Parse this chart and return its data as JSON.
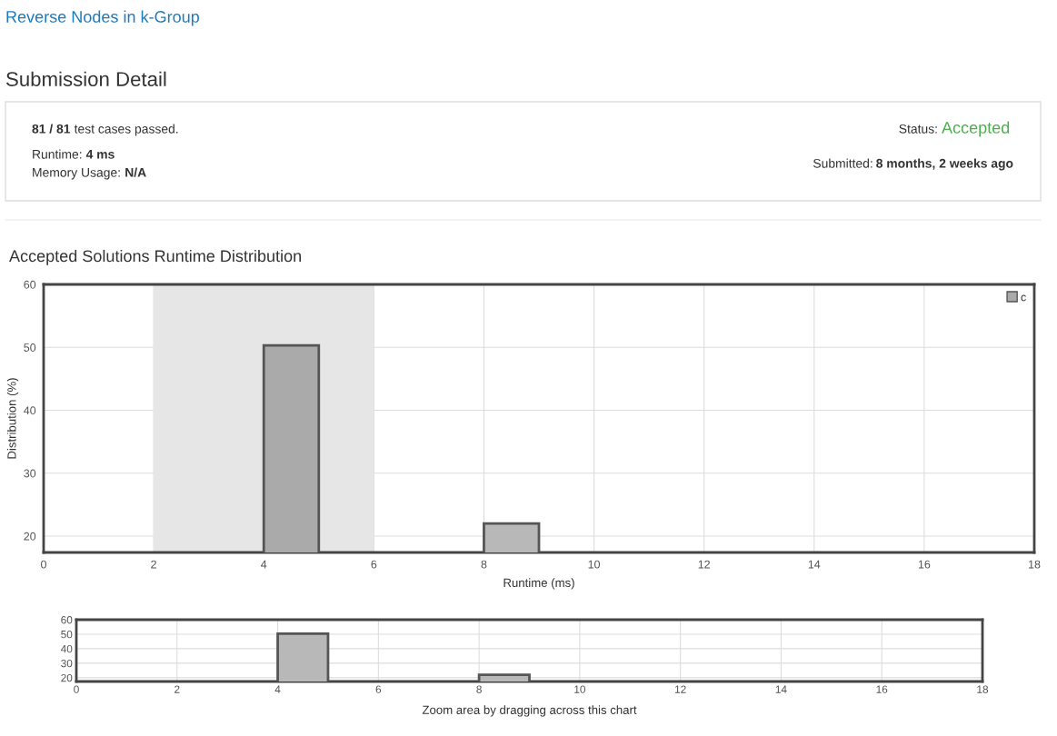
{
  "chart_data": [
    {
      "type": "other",
      "title": "Reverse Nodes in k-Group",
      "subtitle": "Submission Detail",
      "annotations": [
        "81 / 81",
        "test cases passed.",
        "Runtime:",
        "4 ms",
        "Memory Usage:",
        "N/A",
        "Status:",
        "Accepted",
        "Submitted:",
        "8 months, 2 weeks ago"
      ]
    },
    {
      "type": "histogram",
      "title": "Accepted Solutions Runtime Distribution",
      "xlabel": "Runtime (ms)",
      "ylabel": "Distribution (%)",
      "bins": [
        4,
        5,
        6,
        7,
        8,
        9
      ],
      "xlim": [
        0,
        18
      ],
      "xticks": [
        0,
        2,
        4,
        6,
        8,
        10,
        12,
        14,
        16,
        18
      ],
      "ylim": [
        17.4,
        60
      ],
      "yticks": [
        20,
        30,
        40,
        50,
        60
      ],
      "series": [
        {
          "name": "c",
          "color": "#aaaaaa",
          "colors": [
            "#aaaaaa",
            null,
            null,
            null,
            "#b8b8b8"
          ],
          "values": [
            50.3,
            null,
            null,
            null,
            22
          ]
        }
      ],
      "bands": [
        {
          "axis": "x",
          "from": 2,
          "to": 6,
          "color": "#e6e6e6"
        }
      ],
      "grid": true,
      "legend": "top right"
    },
    {
      "type": "histogram",
      "xlabel": "Zoom area by dragging across this chart",
      "bins": [
        4,
        5,
        6,
        7,
        8,
        9
      ],
      "xlim": [
        0,
        18
      ],
      "xticks": [
        0,
        2,
        4,
        6,
        8,
        10,
        12,
        14,
        16,
        18
      ],
      "ylim": [
        17.4,
        60
      ],
      "yticks": [
        20,
        30,
        40,
        50,
        60
      ],
      "series": [
        {
          "color": "#b8b8b8",
          "values": [
            50.3,
            null,
            null,
            null,
            22
          ]
        }
      ],
      "grid": true
    }
  ]
}
